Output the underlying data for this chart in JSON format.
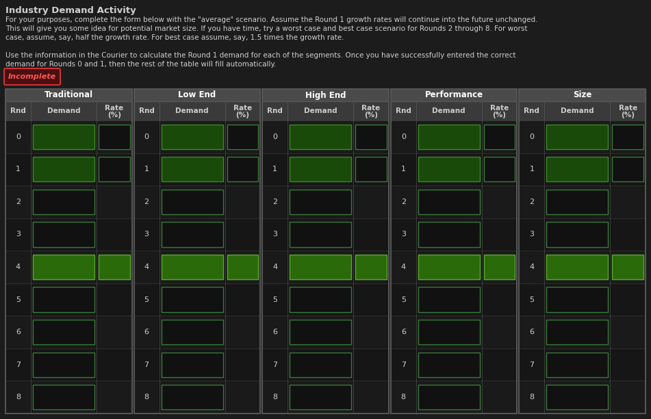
{
  "title": "Industry Demand Activity",
  "bg_color": "#1c1c1c",
  "text_color": "#d0d0d0",
  "description1": "For your purposes, complete the form below with the \"average\" scenario. Assume the Round 1 growth rates will continue into the future unchanged.",
  "description2": "This will give you some idea for potential market size. If you have time, try a worst case and best case scenario for Rounds 2 through 8. For worst",
  "description3": "case, assume, say, half the growth rate. For best case assume, say, 1.5 times the growth rate.",
  "description4": "Use the information in the Courier to calculate the Round 1 demand for each of the segments. Once you have successfully entered the correct",
  "description5": "demand for Rounds 0 and 1, then the rest of the table will fill automatically.",
  "incomplete_label": "Incomplete",
  "incomplete_border": "#cc3333",
  "incomplete_bg": "#4a1010",
  "incomplete_text_color": "#ff5555",
  "segments": [
    "Traditional",
    "Low End",
    "High End",
    "Performance",
    "Size"
  ],
  "rounds": [
    0,
    1,
    2,
    3,
    4,
    5,
    6,
    7,
    8
  ],
  "seg_header_bg": "#4a4a4a",
  "seg_header_text": "#ffffff",
  "col_header_bg": "#3a3a3a",
  "col_header_text": "#cccccc",
  "table_border_color": "#555555",
  "row_line_color": "#333333",
  "demand_box_filled_fc": "#1a4a0a",
  "demand_box_filled_ec": "#3a8a2a",
  "demand_box_empty_fc": "#111111",
  "demand_box_empty_ec": "#3a7a3a",
  "rate_box_bright_fc": "#2a6a0a",
  "rate_box_bright_ec": "#5aaa2a",
  "rate_box_empty_fc": "#111111",
  "rate_box_empty_ec": "#3a6a3a"
}
